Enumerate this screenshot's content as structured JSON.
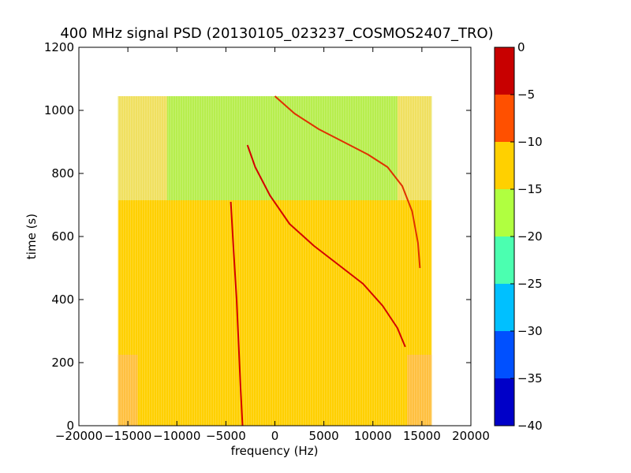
{
  "chart_data": {
    "type": "heatmap",
    "title": "400 MHz signal PSD (20130105_023237_COSMOS2407_TRO)",
    "xlabel": "frequency (Hz)",
    "ylabel": "time (s)",
    "xlim": [
      -20000,
      20000
    ],
    "ylim": [
      0,
      1200
    ],
    "xticks": [
      -20000,
      -15000,
      -10000,
      -5000,
      0,
      5000,
      10000,
      15000,
      20000
    ],
    "xtick_labels": [
      "−20000",
      "−15000",
      "−10000",
      "−5000",
      "0",
      "5000",
      "10000",
      "15000",
      "20000"
    ],
    "yticks": [
      0,
      200,
      400,
      600,
      800,
      1000,
      1200
    ],
    "ytick_labels": [
      "0",
      "200",
      "400",
      "600",
      "800",
      "1000",
      "1200"
    ],
    "grid": false,
    "data_extent": {
      "x": [
        -16000,
        16000
      ],
      "y": [
        0,
        1045
      ]
    },
    "regions": [
      {
        "name": "upper-band",
        "x": [
          -16000,
          16000
        ],
        "y": [
          715,
          1045
        ],
        "level": -17,
        "color": "#b7ee4e"
      },
      {
        "name": "upper-band-left-edge",
        "x": [
          -16000,
          -11000
        ],
        "y": [
          715,
          1045
        ],
        "level": -13,
        "color": "#f0e060"
      },
      {
        "name": "upper-band-right-edge",
        "x": [
          12500,
          16000
        ],
        "y": [
          715,
          1045
        ],
        "level": -13,
        "color": "#f0e060"
      },
      {
        "name": "lower-band",
        "x": [
          -16000,
          16000
        ],
        "y": [
          0,
          715
        ],
        "level": -11,
        "color": "#ffd000"
      },
      {
        "name": "lower-left-corner",
        "x": [
          -16000,
          -14000
        ],
        "y": [
          0,
          225
        ],
        "level": -10,
        "color": "#ffc040"
      },
      {
        "name": "lower-right-corner",
        "x": [
          13500,
          16000
        ],
        "y": [
          0,
          225
        ],
        "level": -10,
        "color": "#ffc040"
      }
    ],
    "traces": [
      {
        "name": "carrier-near-dc",
        "level": -2,
        "color": "#d40000",
        "x": [
          -4500,
          -4200,
          -3900,
          -3700,
          -3500,
          -3300
        ],
        "y": [
          710,
          550,
          400,
          260,
          120,
          0
        ]
      },
      {
        "name": "doppler-main",
        "level": -2,
        "color": "#d40000",
        "x": [
          -2800,
          -2000,
          -500,
          1500,
          4000,
          6500,
          9000,
          11000,
          12500,
          13300
        ],
        "y": [
          890,
          820,
          730,
          640,
          570,
          510,
          450,
          380,
          310,
          250
        ]
      },
      {
        "name": "doppler-upper",
        "level": -3,
        "color": "#e03000",
        "x": [
          0,
          2000,
          4500,
          7000,
          9500,
          11500,
          13000,
          14000,
          14600,
          14800
        ],
        "y": [
          1045,
          990,
          940,
          900,
          860,
          820,
          760,
          680,
          580,
          500
        ]
      }
    ],
    "colorbar": {
      "orientation": "vertical",
      "placement": "right",
      "range": [
        -40,
        0
      ],
      "ticks": [
        0,
        -5,
        -10,
        -15,
        -20,
        -25,
        -30,
        -35,
        -40
      ],
      "tick_labels": [
        "0",
        "−5",
        "−10",
        "−15",
        "−20",
        "−25",
        "−30",
        "−35",
        "−40"
      ],
      "bins": [
        {
          "from": -40,
          "to": -35,
          "color": "#0000c8"
        },
        {
          "from": -35,
          "to": -30,
          "color": "#0050ff"
        },
        {
          "from": -30,
          "to": -25,
          "color": "#00c0ff"
        },
        {
          "from": -25,
          "to": -20,
          "color": "#4bffb0"
        },
        {
          "from": -20,
          "to": -15,
          "color": "#b0ff40"
        },
        {
          "from": -15,
          "to": -10,
          "color": "#ffd000"
        },
        {
          "from": -10,
          "to": -5,
          "color": "#ff5000"
        },
        {
          "from": -5,
          "to": 0,
          "color": "#c80000"
        }
      ]
    }
  }
}
